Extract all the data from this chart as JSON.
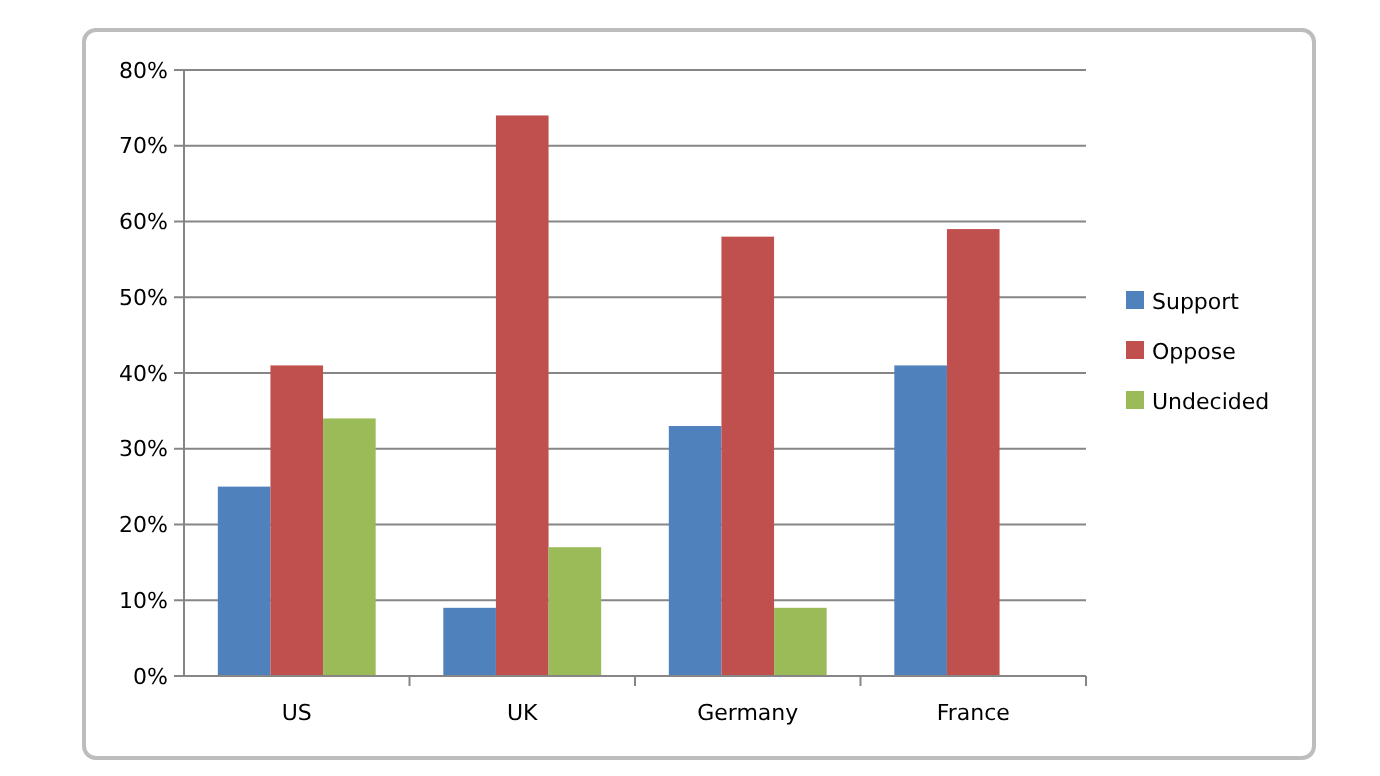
{
  "chart_data": {
    "type": "bar",
    "categories": [
      "US",
      "UK",
      "Germany",
      "France"
    ],
    "series": [
      {
        "name": "Support",
        "color": "#4f81bd",
        "values": [
          25,
          9,
          33,
          41
        ]
      },
      {
        "name": "Oppose",
        "color": "#c0504d",
        "values": [
          41,
          74,
          58,
          59
        ]
      },
      {
        "name": "Undecided",
        "color": "#9bbb59",
        "values": [
          34,
          17,
          9,
          null
        ]
      }
    ],
    "ylim": [
      0,
      80
    ],
    "yticks": [
      {
        "value": 0,
        "label": "0%"
      },
      {
        "value": 10,
        "label": "10%"
      },
      {
        "value": 20,
        "label": "20%"
      },
      {
        "value": 30,
        "label": "30%"
      },
      {
        "value": 40,
        "label": "40%"
      },
      {
        "value": 50,
        "label": "50%"
      },
      {
        "value": 60,
        "label": "60%"
      },
      {
        "value": 70,
        "label": "70%"
      },
      {
        "value": 80,
        "label": "80%"
      }
    ],
    "grid": "y",
    "legend": "right"
  }
}
